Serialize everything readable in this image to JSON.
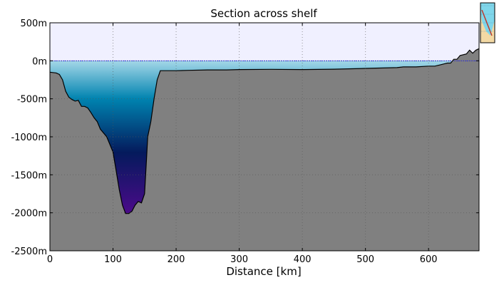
{
  "chart_data": {
    "type": "area",
    "title": "Section across shelf",
    "xlabel": "Distance [km]",
    "ylabel": "",
    "xlim": [
      0,
      680
    ],
    "ylim": [
      -2500,
      500
    ],
    "x_ticks": [
      0,
      100,
      200,
      300,
      400,
      500,
      600
    ],
    "x_tick_labels": [
      "0",
      "100",
      "200",
      "300",
      "400",
      "500",
      "600"
    ],
    "y_ticks": [
      500,
      0,
      -500,
      -1000,
      -1500,
      -2000,
      -2500
    ],
    "y_tick_labels": [
      "500m",
      "0m",
      "-500m",
      "-1000m",
      "-1500m",
      "-2000m",
      "-2500m"
    ],
    "grid": "dotted",
    "sea_level": 0,
    "series": [
      {
        "x": [
          0,
          10,
          15,
          20,
          25,
          30,
          35,
          40,
          45,
          50,
          55,
          60,
          65,
          70,
          75,
          80,
          90,
          100,
          105,
          110,
          115,
          120,
          125,
          130,
          135,
          140,
          145,
          150,
          153,
          155,
          160,
          165,
          170,
          175,
          180,
          200,
          220,
          250,
          280,
          300,
          350,
          400,
          450,
          500,
          550,
          560,
          580,
          600,
          610,
          620,
          625,
          630,
          635,
          640,
          645,
          650,
          660,
          665,
          670,
          675,
          680
        ],
        "values": [
          -150,
          -160,
          -180,
          -250,
          -400,
          -480,
          -510,
          -530,
          -520,
          -600,
          -600,
          -620,
          -680,
          -750,
          -800,
          -900,
          -1000,
          -1200,
          -1450,
          -1700,
          -1900,
          -2010,
          -2010,
          -1980,
          -1900,
          -1850,
          -1870,
          -1750,
          -1300,
          -1000,
          -800,
          -500,
          -250,
          -130,
          -130,
          -130,
          -125,
          -120,
          -120,
          -115,
          -112,
          -115,
          -110,
          -100,
          -90,
          -80,
          -80,
          -70,
          -70,
          -50,
          -40,
          -30,
          -30,
          20,
          20,
          70,
          90,
          140,
          100,
          140,
          160
        ]
      }
    ],
    "colors": {
      "sky": "#f0f0ff",
      "sea_top": "#a5d8e8",
      "sea_mid": "#0083b0",
      "sea_deep": "#041a5c",
      "sea_bottom": "#4b0a8a",
      "ground": "#808080",
      "sea_level_line": "#3030e0"
    }
  },
  "inset_map": {
    "icon": "inset-location-map"
  }
}
